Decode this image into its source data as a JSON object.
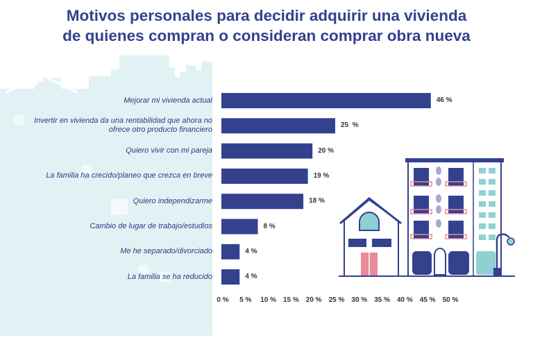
{
  "title": {
    "line1": "Motivos personales para decidir adquirir una vivienda",
    "line2": "de quienes compran o consideran comprar obra nueva"
  },
  "colors": {
    "bar": "#33418f",
    "title": "#33418f",
    "label": "#2d3a85",
    "background_city": "#e2f1f3",
    "accent_teal": "#8fd0d2",
    "accent_pink": "#e98a98"
  },
  "chart_data": {
    "type": "bar",
    "orientation": "horizontal",
    "categories": [
      [
        "Mejorar mi vivienda actual"
      ],
      [
        "Invertir en vivienda da una rentabilidad que ahora no",
        "ofrece otro producto financiero"
      ],
      [
        "Quiero vivir con mi pareja"
      ],
      [
        "La familia ha crecido/planeo que crezca en breve"
      ],
      [
        "Quiero independizarme"
      ],
      [
        "Cambio de lugar de trabajo/estudios"
      ],
      [
        "Me he separado/divorciado"
      ],
      [
        "La familia se ha reducido"
      ]
    ],
    "values": [
      46,
      25,
      20,
      19,
      18,
      8,
      4,
      4
    ],
    "value_labels": [
      "46 %",
      "25  %",
      "20 %",
      "19 %",
      "18 %",
      "8 %",
      "4 %",
      "4 %"
    ],
    "xlim": [
      0,
      50
    ],
    "xticks": [
      0,
      5,
      10,
      15,
      20,
      25,
      30,
      35,
      40,
      45,
      50
    ],
    "xtick_labels": [
      "0 %",
      "5 %",
      "10 %",
      "15 %",
      "20 %",
      "25 %",
      "30 %",
      "35 %",
      "40 %",
      "45 %",
      "50 %"
    ],
    "grid": false,
    "legend": "none"
  }
}
